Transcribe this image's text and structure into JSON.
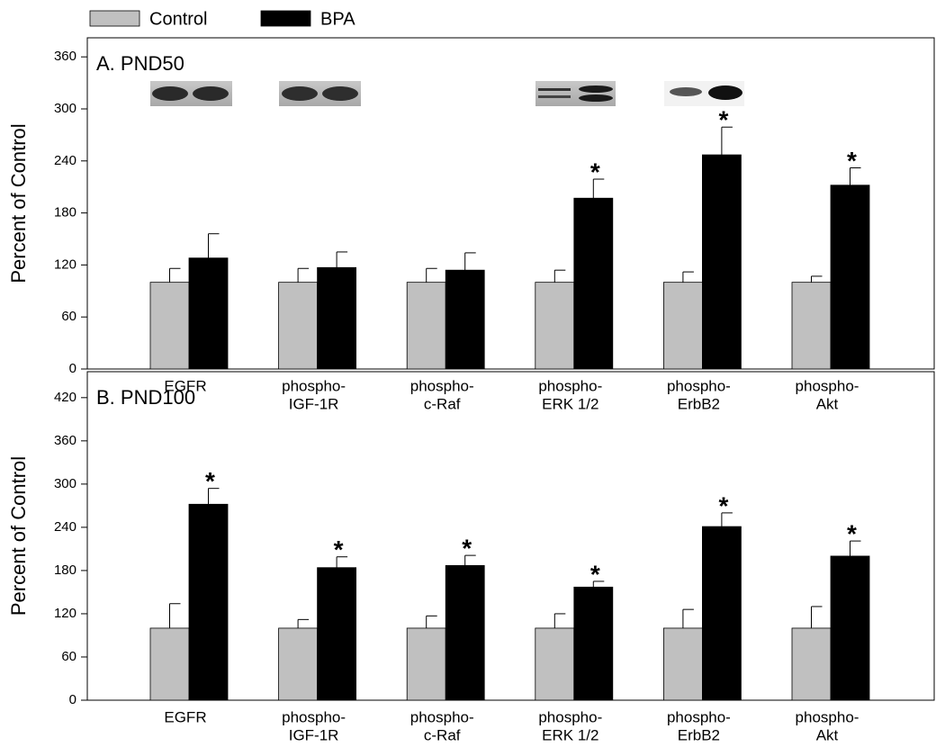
{
  "chart_data": [
    {
      "type": "bar",
      "title": "A. PND50",
      "y_label": "Percent of Control",
      "categories": [
        [
          "EGFR"
        ],
        [
          "phospho-",
          "IGF-1R"
        ],
        [
          "phospho-",
          "c-Raf"
        ],
        [
          "phospho-",
          "ERK 1/2"
        ],
        [
          "phospho-",
          "ErbB2"
        ],
        [
          "phospho-",
          "Akt"
        ]
      ],
      "series": [
        {
          "name": "Control",
          "color": "#c0c0c0",
          "values": [
            100,
            100,
            100,
            100,
            100,
            100
          ],
          "errors": [
            16,
            16,
            16,
            14,
            12,
            7
          ]
        },
        {
          "name": "BPA",
          "color": "#000000",
          "values": [
            128,
            117,
            114,
            197,
            247,
            212
          ],
          "errors": [
            28,
            18,
            20,
            22,
            32,
            20
          ]
        }
      ],
      "annotations": [
        null,
        null,
        null,
        "*",
        "*",
        "*"
      ],
      "ylim": [
        0,
        382
      ],
      "yticks": [
        0,
        60,
        120,
        180,
        240,
        300,
        360
      ]
    },
    {
      "type": "bar",
      "title": "B. PND100",
      "y_label": "Percent of Control",
      "categories": [
        [
          "EGFR"
        ],
        [
          "phospho-",
          "IGF-1R"
        ],
        [
          "phospho-",
          "c-Raf"
        ],
        [
          "phospho-",
          "ERK 1/2"
        ],
        [
          "phospho-",
          "ErbB2"
        ],
        [
          "phospho-",
          "Akt"
        ]
      ],
      "series": [
        {
          "color": "#c0c0c0",
          "values": [
            100,
            100,
            100,
            100,
            100,
            100
          ],
          "errors": [
            34,
            12,
            17,
            20,
            26,
            30
          ]
        },
        {
          "color": "#000000",
          "values": [
            272,
            184,
            187,
            157,
            241,
            200
          ],
          "errors": [
            22,
            15,
            14,
            8,
            19,
            21
          ]
        }
      ],
      "annotations": [
        "*",
        "*",
        "*",
        "*",
        "*",
        "*"
      ],
      "ylim": [
        0,
        456
      ],
      "yticks": [
        0,
        60,
        120,
        180,
        240,
        300,
        360,
        420
      ]
    }
  ]
}
